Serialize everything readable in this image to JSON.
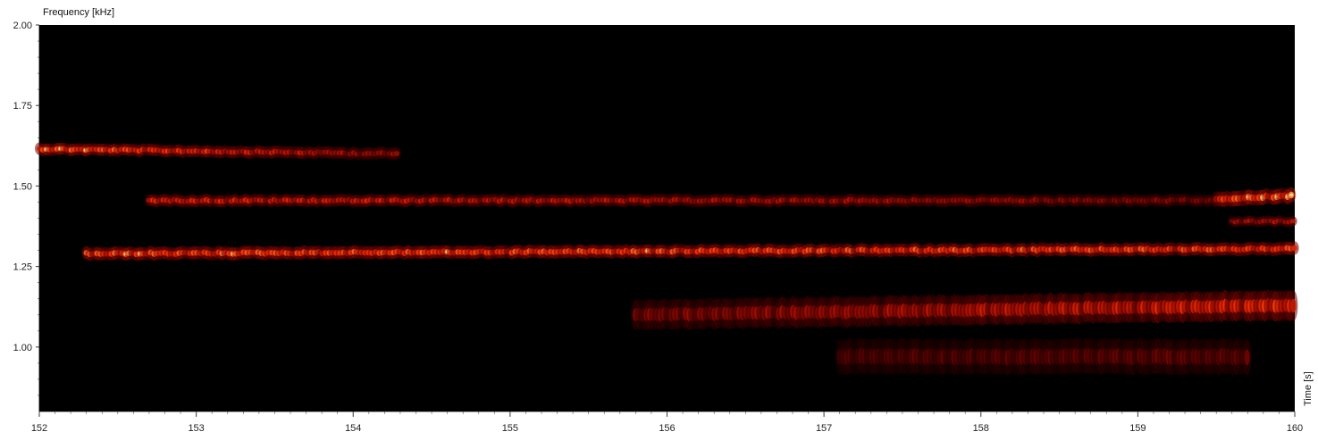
{
  "chart_data": {
    "type": "heatmap",
    "subtype": "spectrogram",
    "xlabel": "Time [s]",
    "ylabel": "Frequency [kHz]",
    "xlim": [
      152,
      160
    ],
    "ylim": [
      0.8,
      2.0
    ],
    "x_ticks": [
      "152",
      "153",
      "154",
      "155",
      "156",
      "157",
      "158",
      "159",
      "160"
    ],
    "x_tick_values": [
      152,
      153,
      154,
      155,
      156,
      157,
      158,
      159,
      160
    ],
    "y_ticks": [
      "1.00",
      "1.25",
      "1.50",
      "1.75",
      "2.00"
    ],
    "y_tick_values": [
      1.0,
      1.25,
      1.5,
      1.75,
      2.0
    ],
    "colormap": [
      "#000000",
      "#5a0000",
      "#b01000",
      "#ff3000",
      "#ff9040",
      "#fff0a0"
    ],
    "background_color": "#000000",
    "grid": false,
    "bands": [
      {
        "t_start": 152.0,
        "t_end": 154.3,
        "f_start": 1.615,
        "f_end": 1.6,
        "intensity": [
          0.75,
          0.35
        ],
        "width": 0.012
      },
      {
        "t_start": 152.7,
        "t_end": 159.7,
        "f_start": 1.455,
        "f_end": 1.455,
        "intensity": [
          0.55,
          0.3
        ],
        "width": 0.012
      },
      {
        "t_start": 152.3,
        "t_end": 160.0,
        "f_start": 1.29,
        "f_end": 1.305,
        "intensity": [
          0.7,
          0.65
        ],
        "width": 0.013
      },
      {
        "t_start": 155.8,
        "t_end": 160.0,
        "f_start": 1.1,
        "f_end": 1.13,
        "intensity": [
          0.3,
          0.6
        ],
        "width": 0.03
      },
      {
        "t_start": 157.1,
        "t_end": 159.7,
        "f_start": 0.97,
        "f_end": 0.97,
        "intensity": [
          0.2,
          0.25
        ],
        "width": 0.035
      },
      {
        "t_start": 159.5,
        "t_end": 160.0,
        "f_start": 1.46,
        "f_end": 1.47,
        "intensity": [
          0.65,
          0.8
        ],
        "width": 0.015
      },
      {
        "t_start": 159.6,
        "t_end": 160.0,
        "f_start": 1.39,
        "f_end": 1.39,
        "intensity": [
          0.4,
          0.45
        ],
        "width": 0.01
      }
    ]
  }
}
